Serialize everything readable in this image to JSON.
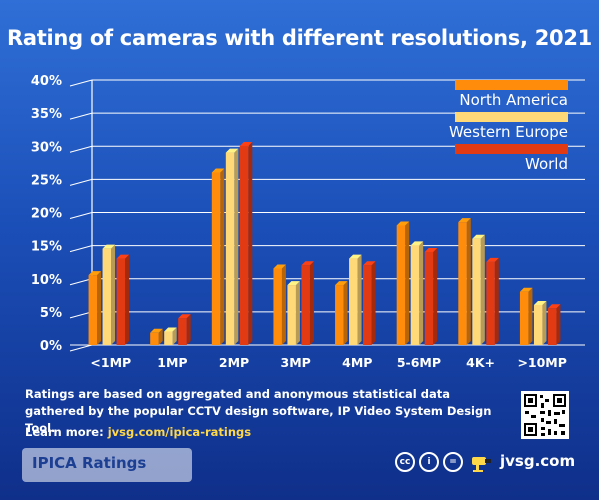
{
  "header": {
    "title": "Rating of cameras with different resolutions, 2021"
  },
  "chart_data": {
    "type": "bar",
    "title": "Rating of cameras with different resolutions, 2021",
    "xlabel": "",
    "ylabel": "",
    "ylim": [
      0,
      40
    ],
    "yticks": [
      "0%",
      "5%",
      "10%",
      "15%",
      "20%",
      "25%",
      "30%",
      "35%",
      "40%"
    ],
    "categories": [
      "<1MP",
      "1MP",
      "2MP",
      "3MP",
      "4MP",
      "5-6MP",
      "4K+",
      ">10MP"
    ],
    "series": [
      {
        "name": "North America",
        "color": "#ff8c0a",
        "values": [
          11,
          2.3,
          26.5,
          12,
          9.5,
          18.5,
          19,
          8.5
        ]
      },
      {
        "name": "Western Europe",
        "color": "#ffd978",
        "values": [
          15,
          2.5,
          29.5,
          9.5,
          13.5,
          15.5,
          16.5,
          6.5
        ]
      },
      {
        "name": "World",
        "color": "#e23a12",
        "values": [
          13.5,
          4.5,
          30.5,
          12.5,
          12.5,
          14.5,
          13,
          6
        ]
      }
    ],
    "legend": "top-right",
    "grid": true
  },
  "footer": {
    "note": "Ratings are based on aggregated and anonymous statistical data gathered by the popular CCTV design software, IP Video System Design Tool.",
    "learn_label": "Learn more:",
    "learn_link": "jvsg.com/ipica-ratings",
    "brand": "IPICA Ratings",
    "site": "jvsg.com"
  }
}
